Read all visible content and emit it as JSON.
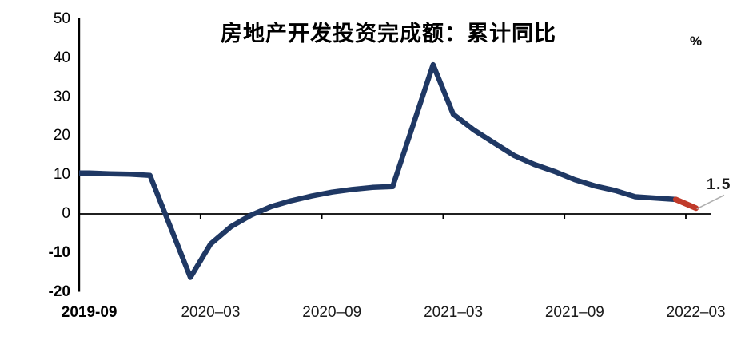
{
  "chart_data": {
    "type": "line",
    "title": "房地产开发投资完成额：累计同比",
    "ylabel": "%",
    "ylim": [
      -20,
      50
    ],
    "ytick_interval": 10,
    "grid": false,
    "legend": "none",
    "x": [
      "2019-09",
      "2019-10",
      "2019-11",
      "2019-12",
      "2020-02",
      "2020-03",
      "2020-04",
      "2020-05",
      "2020-06",
      "2020-07",
      "2020-08",
      "2020-09",
      "2020-10",
      "2020-11",
      "2020-12",
      "2021-02",
      "2021-03",
      "2021-04",
      "2021-05",
      "2021-06",
      "2021-07",
      "2021-08",
      "2021-09",
      "2021-10",
      "2021-11",
      "2021-12",
      "2022-02",
      "2022-03"
    ],
    "series": [
      {
        "name": "房地产开发投资完成额：累计同比",
        "color": "#1f3864",
        "values": [
          10.5,
          10.3,
          10.2,
          9.9,
          -16.3,
          -7.7,
          -3.3,
          -0.3,
          1.9,
          3.4,
          4.6,
          5.6,
          6.3,
          6.8,
          7.0,
          38.3,
          25.6,
          21.6,
          18.3,
          15.0,
          12.7,
          10.9,
          8.8,
          7.2,
          6.0,
          4.4,
          3.7,
          1.5
        ]
      }
    ],
    "highlight_segment": {
      "from": "2022-02",
      "to": "2022-03",
      "color": "#c03a2a"
    },
    "annotation": {
      "text": "1.5",
      "attached_to": "2022-03",
      "leader_color": "#b0b0b0"
    },
    "ytick_labels": [
      "50",
      "40",
      "30",
      "20",
      "10",
      "0",
      "-10",
      "-20"
    ],
    "xtick_labels": [
      "2019-09",
      "2020–03",
      "2020–09",
      "2021–03",
      "2021–09",
      "2022–03"
    ],
    "axis_color": "#000000"
  }
}
